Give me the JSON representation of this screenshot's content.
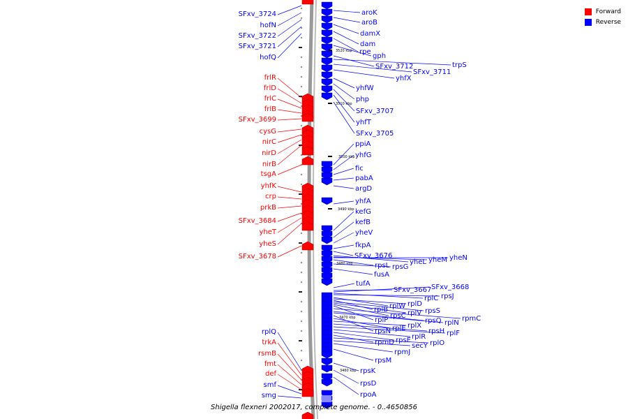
{
  "colors": {
    "forward": "#ff0000",
    "reverse": "#0000ff",
    "backbone": "#888888"
  },
  "legend": {
    "forward_label": "Forward",
    "reverse_label": "Reverse"
  },
  "caption": "Shigella flexneri 2002017, complete genome. - 0..4650856",
  "ticks": [
    {
      "label": "3520 kbp"
    },
    {
      "label": "3510 kbp"
    },
    {
      "label": "3500 kbp"
    },
    {
      "label": "3490 kbp"
    },
    {
      "label": "3480 kbp"
    },
    {
      "label": "3470 kbp"
    },
    {
      "label": "3460 kbp"
    }
  ],
  "forward_genes": [
    "SFxv_3724",
    "hofN",
    "SFxv_3722",
    "SFxv_3721",
    "hofQ",
    "frlR",
    "frlD",
    "frlC",
    "frlB",
    "SFxv_3699",
    "cysG",
    "nirC",
    "nirD",
    "nirB",
    "tsgA",
    "yhfK",
    "crp",
    "prkB",
    "SFxv_3684",
    "yheT",
    "yheS",
    "SFxv_3678",
    "rplQ",
    "trkA",
    "rsmB",
    "fmt",
    "def",
    "smf",
    "smg"
  ],
  "reverse_genes": [
    "aroK",
    "aroB",
    "damX",
    "dam",
    "rpe",
    "gph",
    "SFxv_3712",
    "trpS",
    "SFxv_3711",
    "yhfX",
    "yhfW",
    "php",
    "SFxv_3707",
    "yhfT",
    "SFxv_3705",
    "ppiA",
    "yhfG",
    "fic",
    "pabA",
    "argD",
    "yhfA",
    "kefG",
    "kefB",
    "yheV",
    "fkpA",
    "SFxv_3676",
    "yheL",
    "yheM",
    "yheN",
    "rpsL",
    "rpsG",
    "fusA",
    "tufA",
    "SFxv_3667",
    "SFxv_3668",
    "rplC",
    "rpsJ",
    "rplW",
    "rplD",
    "rplB",
    "rpsS",
    "rplV",
    "rpsC",
    "rplP",
    "rpmC",
    "rpsQ",
    "rplN",
    "rpsN",
    "rplE",
    "rplX",
    "rpsH",
    "rplF",
    "rplR",
    "rpsE",
    "rpmD",
    "rplO",
    "secY",
    "rpmJ",
    "rpsM",
    "rpsK",
    "rpsD",
    "rpoA"
  ]
}
